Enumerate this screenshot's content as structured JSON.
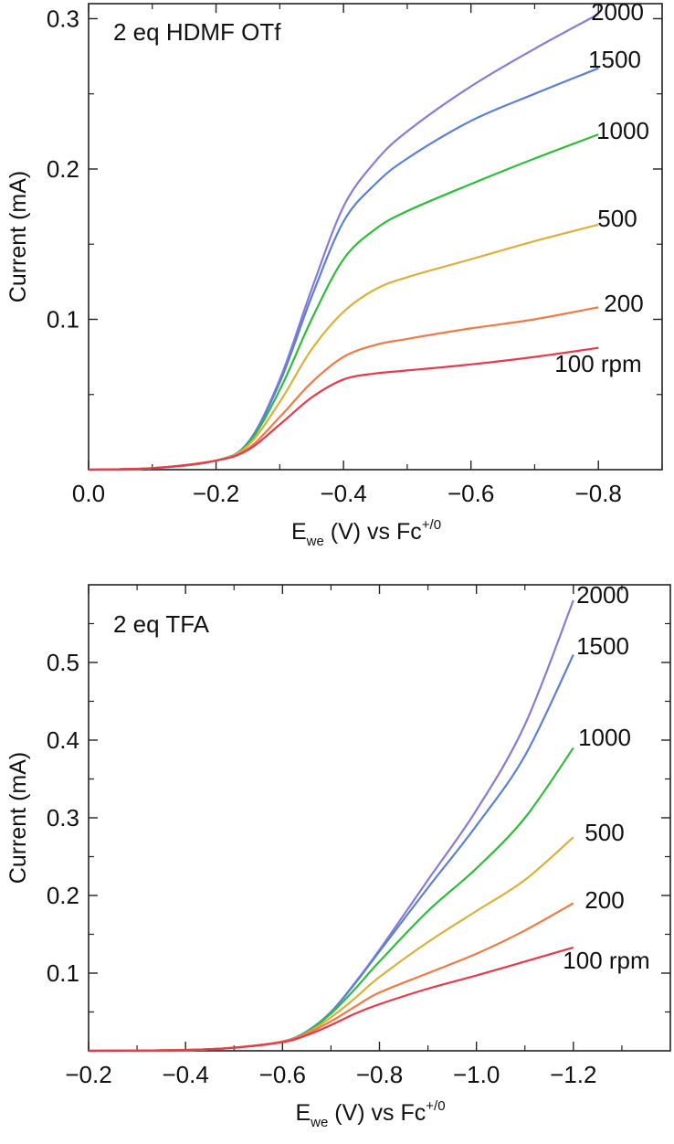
{
  "chart_data": [
    {
      "type": "line",
      "title": "2 eq HDMF OTf",
      "xlabel_main": "E",
      "xlabel_sub": "we",
      "xlabel_rest": " (V) vs Fc",
      "xlabel_sup": "+/0",
      "ylabel": "Current (mA)",
      "xlim": [
        0.0,
        -0.9
      ],
      "ylim": [
        0.0,
        0.31
      ],
      "x_ticks": [
        0.0,
        -0.2,
        -0.4,
        -0.6,
        -0.8
      ],
      "x_tick_labels": [
        "0.0",
        "−0.2",
        "−0.4",
        "−0.6",
        "−0.8"
      ],
      "y_ticks": [
        0.1,
        0.2,
        0.3
      ],
      "y_tick_labels": [
        "0.1",
        "0.2",
        "0.3"
      ],
      "grid": false,
      "series": [
        {
          "name": "2000",
          "color": "#8a7ad6",
          "x": [
            0.0,
            -0.1,
            -0.2,
            -0.25,
            -0.3,
            -0.35,
            -0.4,
            -0.45,
            -0.5,
            -0.6,
            -0.7,
            -0.8
          ],
          "y": [
            0.0,
            0.001,
            0.006,
            0.018,
            0.06,
            0.12,
            0.175,
            0.205,
            0.225,
            0.255,
            0.28,
            0.303
          ]
        },
        {
          "name": "1500",
          "color": "#5b80d4",
          "x": [
            0.0,
            -0.1,
            -0.2,
            -0.25,
            -0.3,
            -0.35,
            -0.4,
            -0.45,
            -0.5,
            -0.6,
            -0.7,
            -0.8
          ],
          "y": [
            0.0,
            0.001,
            0.006,
            0.018,
            0.058,
            0.115,
            0.165,
            0.19,
            0.207,
            0.232,
            0.25,
            0.267
          ]
        },
        {
          "name": "1000",
          "color": "#2ebd3a",
          "x": [
            0.0,
            -0.1,
            -0.2,
            -0.25,
            -0.3,
            -0.35,
            -0.4,
            -0.45,
            -0.5,
            -0.6,
            -0.7,
            -0.8
          ],
          "y": [
            0.0,
            0.001,
            0.006,
            0.017,
            0.053,
            0.1,
            0.14,
            0.16,
            0.172,
            0.19,
            0.207,
            0.223
          ]
        },
        {
          "name": "500",
          "color": "#d9b13c",
          "x": [
            0.0,
            -0.1,
            -0.2,
            -0.25,
            -0.3,
            -0.35,
            -0.4,
            -0.45,
            -0.5,
            -0.6,
            -0.7,
            -0.8
          ],
          "y": [
            0.0,
            0.001,
            0.006,
            0.016,
            0.045,
            0.08,
            0.105,
            0.12,
            0.128,
            0.14,
            0.152,
            0.163
          ]
        },
        {
          "name": "200",
          "color": "#f07a45",
          "x": [
            0.0,
            -0.1,
            -0.2,
            -0.25,
            -0.3,
            -0.35,
            -0.4,
            -0.45,
            -0.5,
            -0.6,
            -0.7,
            -0.8
          ],
          "y": [
            0.0,
            0.001,
            0.006,
            0.014,
            0.035,
            0.058,
            0.075,
            0.083,
            0.087,
            0.094,
            0.1,
            0.108
          ]
        },
        {
          "name": "100 rpm",
          "color": "#e63a4c",
          "x": [
            0.0,
            -0.1,
            -0.2,
            -0.25,
            -0.3,
            -0.35,
            -0.4,
            -0.45,
            -0.5,
            -0.6,
            -0.7,
            -0.8
          ],
          "y": [
            0.0,
            0.001,
            0.006,
            0.013,
            0.03,
            0.048,
            0.06,
            0.064,
            0.066,
            0.07,
            0.075,
            0.081
          ]
        }
      ]
    },
    {
      "type": "line",
      "title": "2 eq TFA",
      "xlabel_main": "E",
      "xlabel_sub": "we",
      "xlabel_rest": " (V) vs Fc",
      "xlabel_sup": "+/0",
      "ylabel": "Current (mA)",
      "xlim": [
        -0.2,
        -1.4
      ],
      "ylim": [
        0.0,
        0.6
      ],
      "x_ticks": [
        -0.2,
        -0.4,
        -0.6,
        -0.8,
        -1.0,
        -1.2
      ],
      "x_tick_labels": [
        "−0.2",
        "−0.4",
        "−0.6",
        "−0.8",
        "−1.0",
        "−1.2"
      ],
      "y_ticks": [
        0.1,
        0.2,
        0.3,
        0.4,
        0.5
      ],
      "y_tick_labels": [
        "0.1",
        "0.2",
        "0.3",
        "0.4",
        "0.5"
      ],
      "grid": false,
      "series": [
        {
          "name": "2000",
          "color": "#8a7ad6",
          "x": [
            -0.2,
            -0.4,
            -0.5,
            -0.6,
            -0.65,
            -0.7,
            -0.75,
            -0.8,
            -0.9,
            -1.0,
            -1.1,
            -1.2
          ],
          "y": [
            0.0,
            0.001,
            0.004,
            0.012,
            0.025,
            0.05,
            0.088,
            0.13,
            0.22,
            0.31,
            0.42,
            0.58
          ]
        },
        {
          "name": "1500",
          "color": "#5b80d4",
          "x": [
            -0.2,
            -0.4,
            -0.5,
            -0.6,
            -0.65,
            -0.7,
            -0.75,
            -0.8,
            -0.9,
            -1.0,
            -1.1,
            -1.2
          ],
          "y": [
            0.0,
            0.001,
            0.004,
            0.012,
            0.025,
            0.05,
            0.087,
            0.128,
            0.21,
            0.29,
            0.38,
            0.51
          ]
        },
        {
          "name": "1000",
          "color": "#2ebd3a",
          "x": [
            -0.2,
            -0.4,
            -0.5,
            -0.6,
            -0.65,
            -0.7,
            -0.75,
            -0.8,
            -0.9,
            -1.0,
            -1.1,
            -1.2
          ],
          "y": [
            0.0,
            0.001,
            0.004,
            0.012,
            0.024,
            0.048,
            0.08,
            0.115,
            0.18,
            0.235,
            0.3,
            0.39
          ]
        },
        {
          "name": "500",
          "color": "#d9b13c",
          "x": [
            -0.2,
            -0.4,
            -0.5,
            -0.6,
            -0.65,
            -0.7,
            -0.75,
            -0.8,
            -0.9,
            -1.0,
            -1.1,
            -1.2
          ],
          "y": [
            0.0,
            0.001,
            0.004,
            0.012,
            0.023,
            0.043,
            0.068,
            0.095,
            0.14,
            0.18,
            0.22,
            0.275
          ]
        },
        {
          "name": "200",
          "color": "#f07a45",
          "x": [
            -0.2,
            -0.4,
            -0.5,
            -0.6,
            -0.65,
            -0.7,
            -0.75,
            -0.8,
            -0.9,
            -1.0,
            -1.1,
            -1.2
          ],
          "y": [
            0.0,
            0.001,
            0.004,
            0.012,
            0.022,
            0.038,
            0.057,
            0.075,
            0.1,
            0.125,
            0.155,
            0.19
          ]
        },
        {
          "name": "100 rpm",
          "color": "#e63a4c",
          "x": [
            -0.2,
            -0.4,
            -0.5,
            -0.6,
            -0.65,
            -0.7,
            -0.75,
            -0.8,
            -0.9,
            -1.0,
            -1.1,
            -1.2
          ],
          "y": [
            0.0,
            0.001,
            0.004,
            0.011,
            0.02,
            0.033,
            0.048,
            0.06,
            0.08,
            0.097,
            0.115,
            0.133
          ]
        }
      ]
    }
  ]
}
